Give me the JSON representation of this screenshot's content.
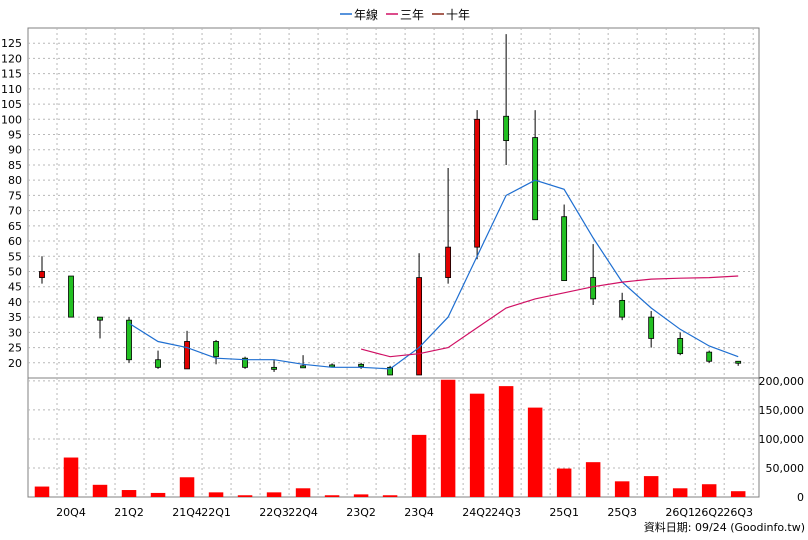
{
  "legend": [
    {
      "label": "年線",
      "color": "#1f6fd1"
    },
    {
      "label": "三年",
      "color": "#d01064"
    },
    {
      "label": "十年",
      "color": "#8a2a1a"
    }
  ],
  "credit": "資料日期: 09/24  (Goodinfo.tw)",
  "chart_data": {
    "type": "candlestick+volume",
    "quarters": [
      "20Q3",
      "20Q4",
      "21Q1",
      "21Q2",
      "21Q3",
      "21Q4",
      "22Q1",
      "22Q2",
      "22Q3",
      "22Q4",
      "23Q1",
      "23Q2",
      "23Q3",
      "23Q4",
      "24Q1",
      "24Q2",
      "24Q3",
      "24Q4",
      "25Q1",
      "25Q2",
      "25Q3",
      "25Q4",
      "26Q1",
      "26Q2",
      "26Q3"
    ],
    "x_tick_labels": [
      "20Q4",
      "21Q2",
      "21Q4",
      "22Q1",
      "22Q3",
      "22Q4",
      "23Q2",
      "23Q4",
      "24Q2",
      "24Q3",
      "25Q1",
      "25Q3",
      "26Q1",
      "26Q2",
      "26Q3"
    ],
    "price_axis": {
      "min": 15,
      "max": 130,
      "ticks": [
        20,
        25,
        30,
        35,
        40,
        45,
        50,
        55,
        60,
        65,
        70,
        75,
        80,
        85,
        90,
        95,
        100,
        105,
        110,
        115,
        120,
        125
      ]
    },
    "volume_axis": {
      "min": 0,
      "max": 200000,
      "ticks": [
        0,
        50000,
        100000,
        150000,
        200000
      ],
      "tick_labels": [
        "0",
        "50,000",
        "100,000",
        "150,000",
        "200,000"
      ]
    },
    "candles": [
      {
        "q": "20Q3",
        "open": 48,
        "high": 55,
        "low": 46,
        "close": 50
      },
      {
        "q": "20Q4",
        "open": 48.5,
        "high": 48.5,
        "low": 35,
        "close": 35
      },
      {
        "q": "21Q1",
        "open": 35,
        "high": 35,
        "low": 28,
        "close": 34
      },
      {
        "q": "21Q2",
        "open": 34,
        "high": 35,
        "low": 20,
        "close": 21
      },
      {
        "q": "21Q3",
        "open": 21,
        "high": 24,
        "low": 18,
        "close": 18.5
      },
      {
        "q": "21Q4",
        "open": 18,
        "high": 30.5,
        "low": 18,
        "close": 27
      },
      {
        "q": "22Q1",
        "open": 27,
        "high": 27.5,
        "low": 19.5,
        "close": 22
      },
      {
        "q": "22Q2",
        "open": 21.5,
        "high": 22,
        "low": 18,
        "close": 18.5
      },
      {
        "q": "22Q3",
        "open": 18.5,
        "high": 21,
        "low": 17,
        "close": 18.5
      },
      {
        "q": "22Q4",
        "open": 19,
        "high": 22.5,
        "low": 18.5,
        "close": 18.5
      },
      {
        "q": "23Q1",
        "open": 19.3,
        "high": 19.8,
        "low": 18.8,
        "close": 19.3
      },
      {
        "q": "23Q2",
        "open": 19.5,
        "high": 20,
        "low": 18,
        "close": 18.8
      },
      {
        "q": "23Q3",
        "open": 18.5,
        "high": 19,
        "low": 16,
        "close": 16
      },
      {
        "q": "23Q4",
        "open": 16,
        "high": 56,
        "low": 16,
        "close": 48
      },
      {
        "q": "24Q1",
        "open": 48,
        "high": 84,
        "low": 46,
        "close": 58
      },
      {
        "q": "24Q2",
        "open": 58,
        "high": 103,
        "low": 54,
        "close": 100
      },
      {
        "q": "24Q3",
        "open": 101,
        "high": 128,
        "low": 85,
        "close": 93
      },
      {
        "q": "24Q4",
        "open": 94,
        "high": 103,
        "low": 67,
        "close": 67
      },
      {
        "q": "25Q1",
        "open": 68,
        "high": 72,
        "low": 47,
        "close": 47
      },
      {
        "q": "25Q2",
        "open": 48,
        "high": 59,
        "low": 39,
        "close": 41
      },
      {
        "q": "25Q3",
        "open": 40.5,
        "high": 43,
        "low": 34,
        "close": 35
      },
      {
        "q": "25Q4",
        "open": 35,
        "high": 37,
        "low": 25,
        "close": 28
      },
      {
        "q": "26Q1",
        "open": 28,
        "high": 30,
        "low": 22.5,
        "close": 23
      },
      {
        "q": "26Q2",
        "open": 23.5,
        "high": 24,
        "low": 20,
        "close": 20.5
      },
      {
        "q": "26Q3",
        "open": 20.5,
        "high": 20.5,
        "low": 19,
        "close": 20
      }
    ],
    "series": [
      {
        "name": "年線",
        "color": "#1f6fd1",
        "start_index": 3,
        "values": [
          33,
          27,
          25,
          21.5,
          21,
          21,
          19.5,
          18.5,
          18.5,
          18,
          25,
          35,
          55,
          75,
          80,
          77,
          61,
          46.5,
          38,
          31,
          25.5,
          22
        ]
      },
      {
        "name": "三年",
        "color": "#d01064",
        "start_index": 11,
        "values": [
          24.5,
          22,
          23,
          25,
          31.5,
          38,
          41,
          43,
          45,
          46.5,
          47.5,
          47.8,
          48,
          48.5
        ]
      }
    ],
    "volumes": [
      18000,
      68000,
      21000,
      12000,
      7000,
      34000,
      8000,
      3000,
      8000,
      15000,
      3000,
      4500,
      3000,
      107000,
      202000,
      178000,
      191000,
      154000,
      49000,
      60000,
      27000,
      36000,
      15000,
      22000,
      10000
    ]
  }
}
